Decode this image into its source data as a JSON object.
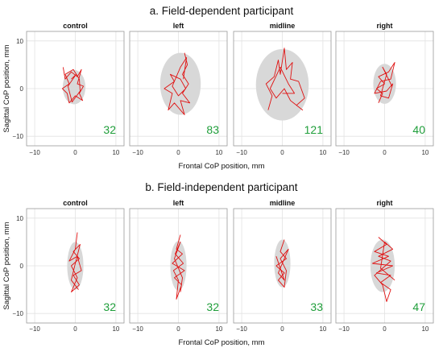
{
  "chart_data": [
    {
      "group_title": "a. Field-dependent participant",
      "type": "line",
      "xlabel": "Frontal CoP position, mm",
      "ylabel": "Sagittal CoP position, mm",
      "xlim": [
        -12,
        12
      ],
      "ylim": [
        -12,
        12
      ],
      "ticks": [
        -10,
        0,
        10
      ],
      "grid": true,
      "panels": [
        {
          "title": "control",
          "area": "32",
          "ellipse": {
            "cx": -0.3,
            "cy": 0.3,
            "rx": 2.8,
            "ry": 3.6
          },
          "trace": [
            [
              -3,
              4.5
            ],
            [
              -2.5,
              2
            ],
            [
              -1,
              3.5
            ],
            [
              0.5,
              2.5
            ],
            [
              1.5,
              4
            ],
            [
              0.5,
              1
            ],
            [
              2,
              0.5
            ],
            [
              1,
              -1
            ],
            [
              1.8,
              -2.5
            ],
            [
              0,
              -1.5
            ],
            [
              -1.5,
              -3
            ],
            [
              -2,
              -1
            ],
            [
              -3.2,
              0
            ],
            [
              -1.5,
              1
            ],
            [
              -2.5,
              3
            ],
            [
              -0.5,
              4
            ],
            [
              1,
              2
            ],
            [
              1.2,
              -0.5
            ],
            [
              -0.8,
              -2.8
            ],
            [
              -1.8,
              0.5
            ],
            [
              0.2,
              3
            ],
            [
              -1,
              2
            ]
          ]
        },
        {
          "title": "left",
          "area": "83",
          "ellipse": {
            "cx": 0.5,
            "cy": 1.0,
            "rx": 5.0,
            "ry": 6.5
          },
          "trace": [
            [
              1.5,
              7.5
            ],
            [
              2.2,
              5
            ],
            [
              1,
              3
            ],
            [
              2.5,
              1
            ],
            [
              1,
              -1
            ],
            [
              2.8,
              -3
            ],
            [
              0.5,
              -2.5
            ],
            [
              1.5,
              -5.5
            ],
            [
              -1,
              -3
            ],
            [
              -2.5,
              -4.5
            ],
            [
              -1.5,
              -1
            ],
            [
              -3.5,
              0
            ],
            [
              -1,
              1.5
            ],
            [
              -2,
              3
            ],
            [
              0.5,
              2
            ],
            [
              1.8,
              0
            ],
            [
              0,
              -1.5
            ],
            [
              -1.5,
              0.5
            ],
            [
              0.5,
              4.5
            ],
            [
              2,
              6.5
            ],
            [
              1.2,
              2
            ]
          ]
        },
        {
          "title": "midline",
          "area": "121",
          "ellipse": {
            "cx": 0.0,
            "cy": 0.8,
            "rx": 6.5,
            "ry": 7.5
          },
          "trace": [
            [
              -3.5,
              -4.5
            ],
            [
              -2.5,
              -1.5
            ],
            [
              -4,
              1
            ],
            [
              -2,
              2.5
            ],
            [
              -1,
              6
            ],
            [
              -0.5,
              3
            ],
            [
              0.5,
              8.5
            ],
            [
              1,
              4
            ],
            [
              2.5,
              5.5
            ],
            [
              2,
              2
            ],
            [
              4,
              1.5
            ],
            [
              5.5,
              -2
            ],
            [
              3.5,
              -3.5
            ],
            [
              5,
              -4.5
            ],
            [
              2,
              -2.5
            ],
            [
              0.5,
              0
            ],
            [
              -1.5,
              -2
            ],
            [
              -3,
              0
            ],
            [
              -0.5,
              4.5
            ],
            [
              1.5,
              1
            ],
            [
              3,
              -1
            ],
            [
              0,
              -1
            ]
          ]
        },
        {
          "title": "right",
          "area": "40",
          "ellipse": {
            "cx": 0.0,
            "cy": 1.0,
            "rx": 2.8,
            "ry": 4.2
          },
          "trace": [
            [
              -1.5,
              -3
            ],
            [
              -0.5,
              -1
            ],
            [
              -2,
              0
            ],
            [
              0,
              1
            ],
            [
              -1.5,
              2.5
            ],
            [
              1,
              3.5
            ],
            [
              2.5,
              5.5
            ],
            [
              1.5,
              2
            ],
            [
              -1,
              1.5
            ],
            [
              -2.5,
              -1
            ],
            [
              0.5,
              -0.5
            ],
            [
              2,
              1
            ],
            [
              1,
              -2
            ],
            [
              -1,
              -1.5
            ],
            [
              0.5,
              3
            ],
            [
              -0.5,
              4.5
            ],
            [
              1.8,
              0.5
            ]
          ]
        }
      ]
    },
    {
      "group_title": "b. Field-independent participant",
      "type": "line",
      "xlabel": "Frontal CoP position, mm",
      "ylabel": "Sagittal CoP position, mm",
      "xlim": [
        -12,
        12
      ],
      "ylim": [
        -12,
        12
      ],
      "ticks": [
        -10,
        0,
        10
      ],
      "grid": true,
      "panels": [
        {
          "title": "control",
          "area": "32",
          "ellipse": {
            "cx": 0.0,
            "cy": 0.0,
            "rx": 2.0,
            "ry": 5.0
          },
          "trace": [
            [
              0.5,
              7
            ],
            [
              0,
              3.5
            ],
            [
              -1.5,
              1
            ],
            [
              0.5,
              2
            ],
            [
              1.5,
              -1
            ],
            [
              -0.5,
              -2
            ],
            [
              1,
              -4
            ],
            [
              -1,
              -5.5
            ],
            [
              0.5,
              -2.5
            ],
            [
              -1,
              0
            ],
            [
              1,
              1.5
            ],
            [
              -0.5,
              3
            ],
            [
              1.2,
              4.5
            ],
            [
              0,
              0.5
            ],
            [
              -1,
              -3
            ],
            [
              0.8,
              -5
            ]
          ]
        },
        {
          "title": "left",
          "area": "32",
          "ellipse": {
            "cx": 0.0,
            "cy": 0.0,
            "rx": 2.0,
            "ry": 5.2
          },
          "trace": [
            [
              0.5,
              6.5
            ],
            [
              -0.5,
              3.5
            ],
            [
              1,
              2.5
            ],
            [
              -1.5,
              0.5
            ],
            [
              1.5,
              -1
            ],
            [
              -1,
              -2.5
            ],
            [
              0.8,
              -4
            ],
            [
              -0.5,
              -7
            ],
            [
              0,
              -3
            ],
            [
              -1.2,
              -1
            ],
            [
              1.2,
              0.5
            ],
            [
              -0.8,
              2.5
            ],
            [
              0.5,
              5
            ],
            [
              -1,
              1.5
            ],
            [
              1,
              -2.5
            ],
            [
              0.5,
              -5.5
            ]
          ]
        },
        {
          "title": "midline",
          "area": "33",
          "ellipse": {
            "cx": 0.0,
            "cy": 0.5,
            "rx": 2.0,
            "ry": 5.0
          },
          "trace": [
            [
              0.5,
              5.5
            ],
            [
              -0.5,
              3
            ],
            [
              1,
              1.5
            ],
            [
              -1.5,
              0
            ],
            [
              0.5,
              -1.5
            ],
            [
              -1,
              -3
            ],
            [
              0.5,
              -4.5
            ],
            [
              1,
              -1
            ],
            [
              -0.5,
              1.5
            ],
            [
              1.5,
              3.5
            ],
            [
              0,
              0.5
            ],
            [
              -1,
              -1.5
            ],
            [
              0.5,
              -3
            ],
            [
              -1.5,
              2
            ]
          ]
        },
        {
          "title": "right",
          "area": "47",
          "ellipse": {
            "cx": -0.5,
            "cy": 0.0,
            "rx": 3.0,
            "ry": 5.5
          },
          "trace": [
            [
              -1.5,
              6
            ],
            [
              0.5,
              4.5
            ],
            [
              -2.5,
              3
            ],
            [
              1,
              2
            ],
            [
              -3,
              0.5
            ],
            [
              2,
              0
            ],
            [
              -2,
              -1.5
            ],
            [
              1.5,
              -2
            ],
            [
              -1,
              -3.5
            ],
            [
              1.5,
              -5
            ],
            [
              0.5,
              -7.5
            ],
            [
              -0.5,
              -4
            ],
            [
              -2.5,
              -2
            ],
            [
              1.5,
              1
            ],
            [
              -1.5,
              2
            ],
            [
              2,
              3.5
            ],
            [
              0,
              5
            ],
            [
              -1,
              -0.5
            ],
            [
              2.5,
              -3
            ]
          ]
        }
      ]
    }
  ],
  "colors": {
    "trace": "#e01010",
    "ellipse": "#d8d8d8",
    "area_text": "#1f9e3a",
    "grid": "#e2e2e2",
    "frame": "#9a9a9a"
  }
}
